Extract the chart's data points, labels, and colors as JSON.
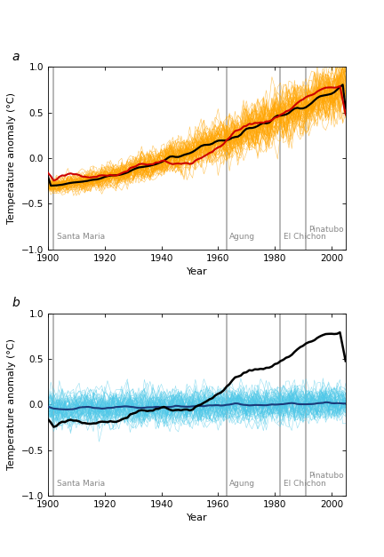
{
  "title_a": "a",
  "title_b": "b",
  "ylabel": "Temperature anomaly (°C)",
  "xlabel": "Year",
  "xlim": [
    1900,
    2005
  ],
  "ylim": [
    -1.0,
    1.0
  ],
  "yticks": [
    -1.0,
    -0.5,
    0.0,
    0.5,
    1.0
  ],
  "xticks": [
    1900,
    1920,
    1940,
    1960,
    1980,
    2000
  ],
  "volcano_lines": [
    1902,
    1963,
    1982,
    1991
  ],
  "ensemble_color_a": "#FFA500",
  "ensemble_color_b": "#4DC8E8",
  "obs_color_a": "#CC0000",
  "mean_color_a": "#000000",
  "mean_color_b": "#000000",
  "model_mean_color_b": "#1A3A7A",
  "n_ensemble": 58,
  "seed": 42,
  "background_color": "#ffffff",
  "panel_label_fontsize": 10,
  "axis_label_fontsize": 8,
  "tick_label_fontsize": 7.5,
  "volcano_label_fontsize": 6.5,
  "volcano_label_color": "#888888"
}
